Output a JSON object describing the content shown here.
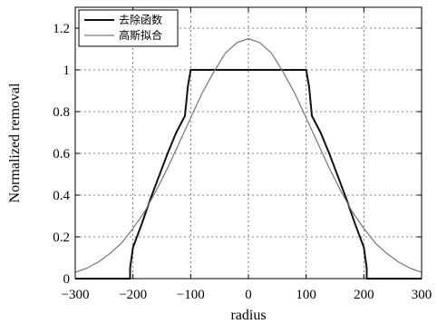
{
  "chart_data": {
    "type": "line",
    "title": "",
    "xlabel": "radius",
    "ylabel": "Normalized removal",
    "xlim": [
      -300,
      300
    ],
    "ylim": [
      0,
      1.3
    ],
    "grid": true,
    "legend_position": "top-left",
    "xticks": [
      -300,
      -200,
      -100,
      0,
      100,
      200,
      300
    ],
    "xtick_labels": [
      "−300",
      "−200",
      "−100",
      "0",
      "100",
      "200",
      "300"
    ],
    "yticks": [
      0,
      0.2,
      0.4,
      0.6,
      0.8,
      1,
      1.2
    ],
    "ytick_labels": [
      "0",
      "0.2",
      "0.4",
      "0.6",
      "0.8",
      "1",
      "1.2"
    ],
    "series": [
      {
        "name": "去除函数",
        "color": "#111111",
        "width": 2,
        "x": [
          -300,
          -205,
          -205,
          -200,
          -185,
          -170,
          -155,
          -140,
          -125,
          -110,
          -105,
          -100,
          100,
          105,
          110,
          125,
          140,
          155,
          170,
          185,
          200,
          205,
          205,
          300
        ],
        "y": [
          0,
          0,
          0.05,
          0.15,
          0.26,
          0.38,
          0.49,
          0.6,
          0.7,
          0.78,
          0.92,
          1.0,
          1.0,
          0.92,
          0.78,
          0.7,
          0.6,
          0.49,
          0.38,
          0.26,
          0.15,
          0.05,
          0,
          0
        ]
      },
      {
        "name": "高斯拟合",
        "color": "#777777",
        "width": 1.2,
        "x": [
          -300,
          -280,
          -260,
          -240,
          -220,
          -200,
          -180,
          -160,
          -140,
          -120,
          -100,
          -80,
          -60,
          -40,
          -20,
          0,
          20,
          40,
          60,
          80,
          100,
          120,
          140,
          160,
          180,
          200,
          220,
          240,
          260,
          280,
          300
        ],
        "y": [
          0.03,
          0.05,
          0.08,
          0.12,
          0.17,
          0.24,
          0.32,
          0.42,
          0.53,
          0.65,
          0.77,
          0.89,
          0.99,
          1.08,
          1.13,
          1.15,
          1.13,
          1.08,
          0.99,
          0.89,
          0.77,
          0.65,
          0.53,
          0.42,
          0.32,
          0.24,
          0.17,
          0.12,
          0.08,
          0.05,
          0.03
        ]
      }
    ]
  }
}
